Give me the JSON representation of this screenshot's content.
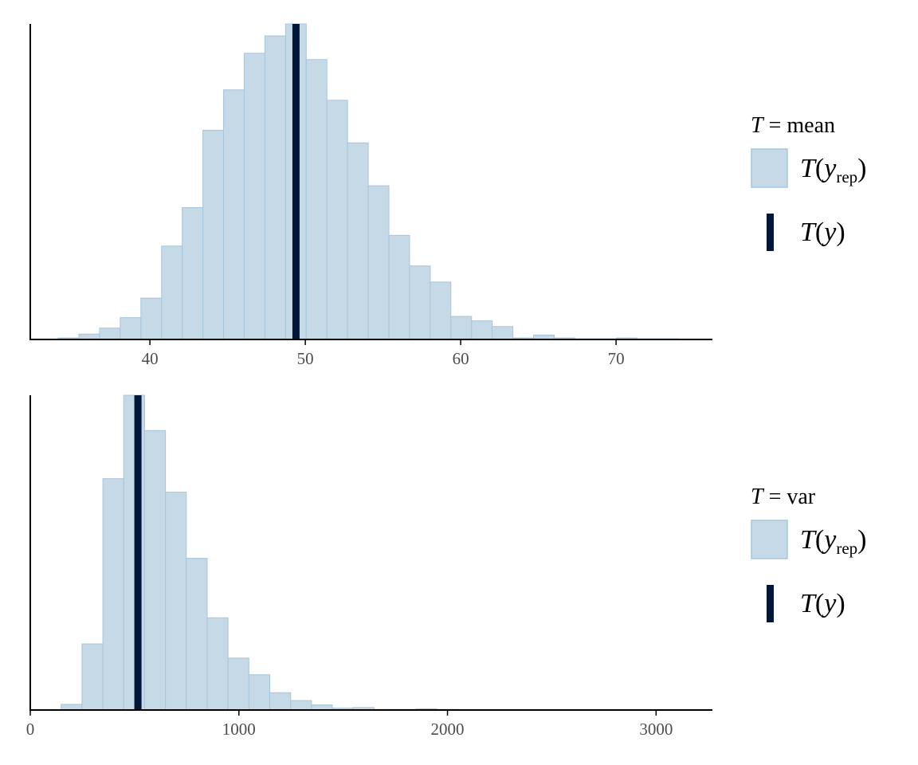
{
  "colors": {
    "bar_fill": "#c6d9e7",
    "bar_stroke": "#a7c5da",
    "observed_line": "#011638",
    "axis": "#000000",
    "tick_text": "#4d4d4d"
  },
  "chart_data": [
    {
      "type": "bar",
      "subtype": "histogram",
      "statistic": "mean",
      "xlim": [
        32.3,
        76.2
      ],
      "ylim": [
        0,
        1
      ],
      "xticks": [
        "40",
        "50",
        "60",
        "70"
      ],
      "xtick_values": [
        40,
        50,
        60,
        70
      ],
      "y_axis_ticks": false,
      "grid": false,
      "bin_start": 34.1,
      "bin_width": 1.33,
      "counts": [
        0.005,
        0.017,
        0.036,
        0.069,
        0.131,
        0.296,
        0.418,
        0.663,
        0.791,
        0.907,
        0.962,
        1.0,
        0.887,
        0.758,
        0.623,
        0.487,
        0.33,
        0.233,
        0.182,
        0.073,
        0.059,
        0.041,
        0.005,
        0.014,
        0.005,
        0.002,
        0.002,
        0.005,
        0.002,
        0.002
      ],
      "observed": 49.4,
      "legend": {
        "position": "right",
        "title_var": "T",
        "title_eq": " = ",
        "title_stat": "mean",
        "rep_T": "T",
        "rep_y": "y",
        "rep_sub": "rep",
        "obs_T": "T",
        "obs_y": "y"
      }
    },
    {
      "type": "bar",
      "subtype": "histogram",
      "statistic": "var",
      "xlim": [
        0,
        3270
      ],
      "ylim": [
        0,
        1
      ],
      "xticks": [
        "0",
        "1000",
        "2000",
        "3000"
      ],
      "xtick_values": [
        0,
        1000,
        2000,
        3000
      ],
      "y_axis_ticks": false,
      "grid": false,
      "bin_start": 148,
      "bin_width": 100,
      "counts": [
        0.018,
        0.21,
        0.735,
        1.0,
        0.888,
        0.692,
        0.482,
        0.293,
        0.165,
        0.112,
        0.055,
        0.03,
        0.016,
        0.006,
        0.008,
        0.002,
        0.002,
        0.004,
        0.002,
        0.001,
        0.001,
        0.001,
        0.001,
        0.001,
        0.0005,
        0.0005,
        0.0005,
        0.0005,
        0.0005,
        0.0005
      ],
      "observed": 516,
      "legend": {
        "position": "right",
        "title_var": "T",
        "title_eq": " = ",
        "title_stat": "var",
        "rep_T": "T",
        "rep_y": "y",
        "rep_sub": "rep",
        "obs_T": "T",
        "obs_y": "y"
      }
    }
  ]
}
